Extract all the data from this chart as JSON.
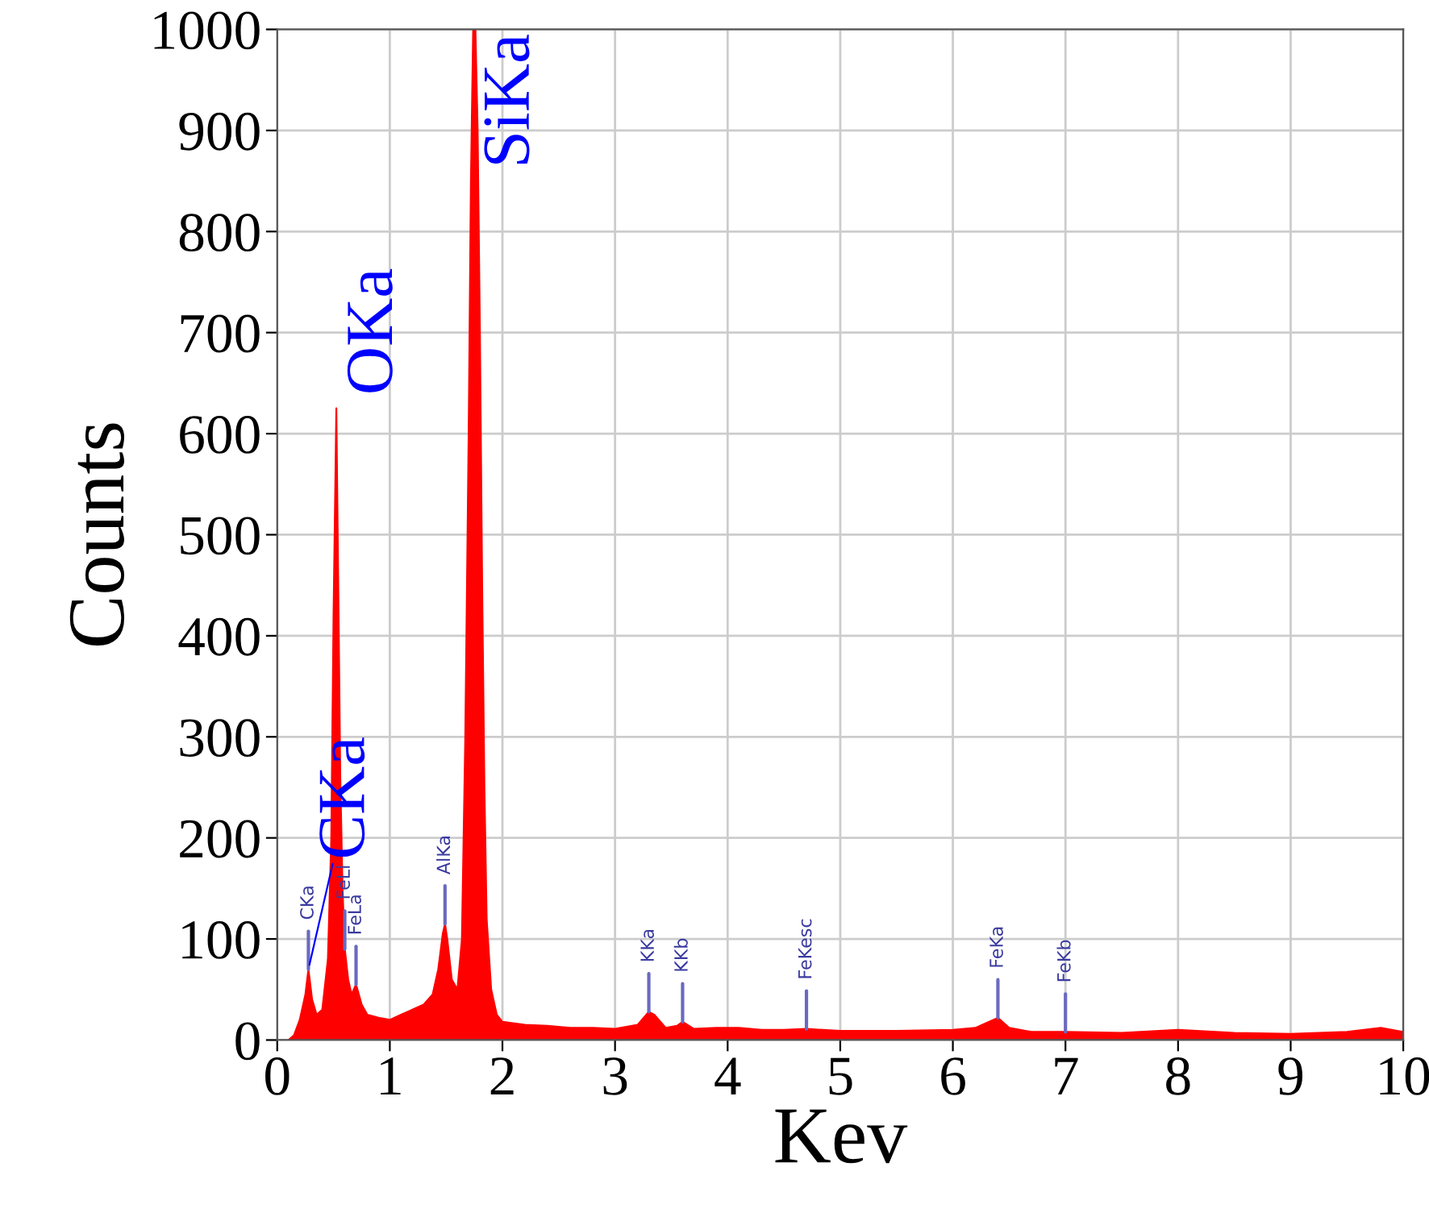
{
  "chart_data": {
    "type": "area",
    "xlabel": "Kev",
    "ylabel": "Counts",
    "xlim": [
      0,
      10
    ],
    "ylim": [
      0,
      1000
    ],
    "xticks": [
      0,
      1,
      2,
      3,
      4,
      5,
      6,
      7,
      8,
      9,
      10
    ],
    "yticks": [
      0,
      100,
      200,
      300,
      400,
      500,
      600,
      700,
      800,
      900,
      1000
    ],
    "grid": true,
    "series": [
      {
        "color": "#ff0000",
        "x": [
          0.1,
          0.15,
          0.2,
          0.25,
          0.277,
          0.31,
          0.35,
          0.4,
          0.45,
          0.48,
          0.5,
          0.525,
          0.545,
          0.56,
          0.58,
          0.6,
          0.63,
          0.66,
          0.7,
          0.75,
          0.8,
          0.9,
          1.0,
          1.1,
          1.2,
          1.3,
          1.38,
          1.43,
          1.47,
          1.49,
          1.51,
          1.55,
          1.6,
          1.64,
          1.67,
          1.7,
          1.72,
          1.74,
          1.76,
          1.78,
          1.8,
          1.82,
          1.84,
          1.86,
          1.9,
          1.95,
          2.0,
          2.2,
          2.4,
          2.6,
          2.8,
          3.0,
          3.2,
          3.3,
          3.35,
          3.45,
          3.55,
          3.6,
          3.7,
          3.9,
          4.1,
          4.3,
          4.5,
          4.7,
          5.0,
          5.5,
          6.0,
          6.2,
          6.4,
          6.5,
          6.7,
          7.0,
          7.5,
          8.0,
          8.5,
          9.0,
          9.5,
          9.8,
          10.0
        ],
        "values": [
          0,
          5,
          20,
          45,
          70,
          40,
          25,
          30,
          80,
          200,
          420,
          625,
          420,
          260,
          150,
          90,
          60,
          45,
          55,
          35,
          25,
          22,
          20,
          25,
          30,
          35,
          45,
          70,
          105,
          115,
          100,
          60,
          50,
          100,
          300,
          600,
          850,
          1000,
          1000,
          900,
          700,
          450,
          250,
          120,
          50,
          25,
          18,
          15,
          14,
          12,
          12,
          11,
          15,
          28,
          25,
          12,
          14,
          18,
          11,
          12,
          12,
          10,
          10,
          11,
          9,
          9,
          10,
          12,
          22,
          12,
          8,
          8,
          7,
          10,
          7,
          6,
          8,
          12,
          8
        ]
      }
    ],
    "annotations": [
      {
        "text": "CKa",
        "x": 0.277,
        "y": 70
      },
      {
        "text": "OKa",
        "x": 0.525,
        "y": 625
      },
      {
        "text": "SiKa",
        "x": 1.74,
        "y": 1000
      },
      {
        "text": "CKa",
        "x": 0.277,
        "y": 70
      },
      {
        "text": "FeLl",
        "x": 0.6,
        "y": 90
      },
      {
        "text": "FeLa",
        "x": 0.7,
        "y": 55
      },
      {
        "text": "AlKa",
        "x": 1.49,
        "y": 115
      },
      {
        "text": "KKa",
        "x": 3.3,
        "y": 28
      },
      {
        "text": "KKb",
        "x": 3.6,
        "y": 18
      },
      {
        "text": "FeKesc",
        "x": 4.7,
        "y": 11
      },
      {
        "text": "FeKa",
        "x": 6.4,
        "y": 22
      },
      {
        "text": "FeKb",
        "x": 7.0,
        "y": 8
      }
    ]
  }
}
